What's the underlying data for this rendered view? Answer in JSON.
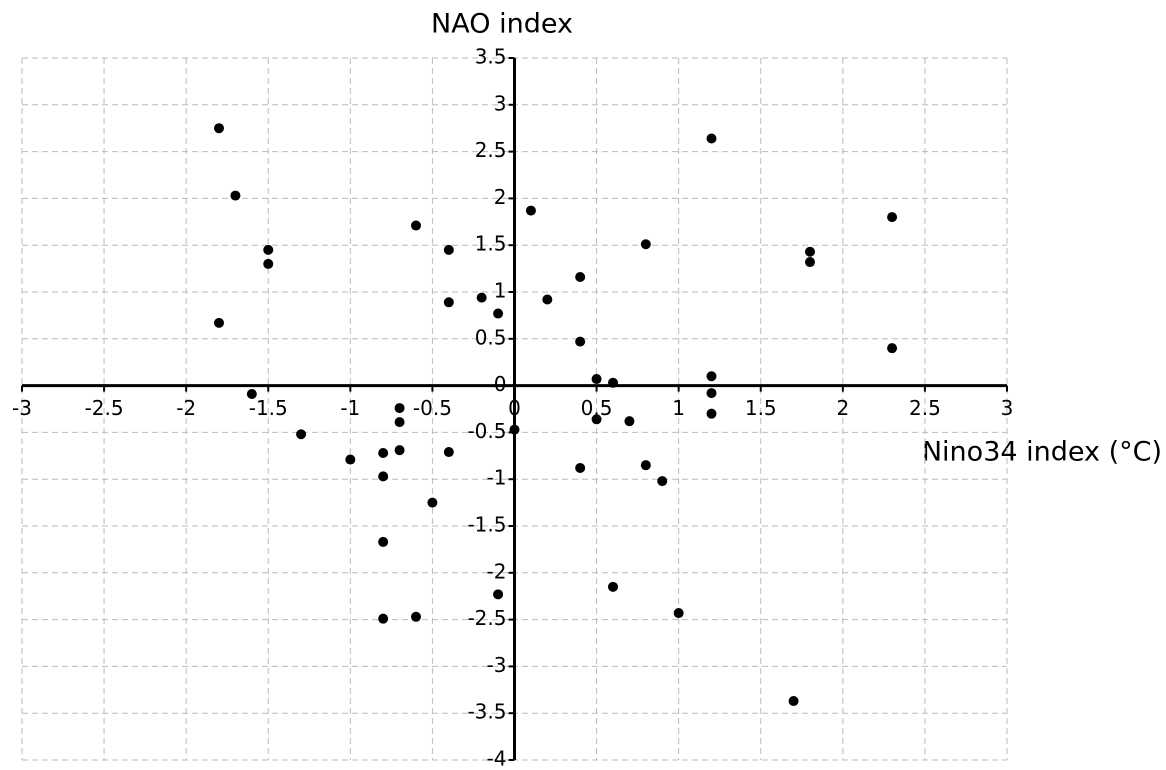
{
  "chart_data": {
    "type": "scatter",
    "x_label": "Nino34 index (°C)",
    "y_label": "NAO index",
    "color": "#000000",
    "grid": true,
    "xlim": [
      -3,
      3
    ],
    "ylim": [
      -4,
      3.5
    ],
    "xticks": [
      -3,
      -2.5,
      -2,
      -1.5,
      -1,
      -0.5,
      0,
      0.5,
      1,
      1.5,
      2,
      2.5,
      3
    ],
    "yticks": [
      -4,
      -3.5,
      -3,
      -2.5,
      -2,
      -1.5,
      -1,
      -0.5,
      0,
      0.5,
      1,
      1.5,
      2,
      2.5,
      3,
      3.5
    ],
    "x": [
      -1.8,
      -1.7,
      -1.5,
      -1.5,
      -1.8,
      -1.6,
      -1.3,
      -1.0,
      -0.8,
      -0.8,
      -0.7,
      -0.7,
      -0.7,
      -0.8,
      -0.8,
      -0.6,
      -0.5,
      -0.6,
      -0.4,
      -0.4,
      -0.4,
      -0.2,
      -0.1,
      -0.1,
      0,
      0.1,
      0.2,
      0.4,
      0.4,
      0.4,
      0.5,
      0.5,
      0.6,
      0.6,
      0.7,
      0.8,
      0.8,
      0.9,
      1.0,
      1.2,
      1.2,
      1.2,
      1.2,
      1.7,
      1.8,
      1.8,
      2.3,
      2.3
    ],
    "y": [
      2.75,
      2.03,
      1.45,
      1.3,
      0.67,
      -0.09,
      -0.52,
      -0.79,
      -0.72,
      -0.97,
      -0.24,
      -0.39,
      -0.69,
      -1.67,
      -2.49,
      -2.47,
      -1.25,
      1.71,
      1.45,
      0.89,
      -0.71,
      0.94,
      0.77,
      -2.23,
      -0.47,
      1.87,
      0.92,
      1.16,
      0.47,
      -0.88,
      0.07,
      -0.36,
      0.03,
      -2.15,
      -0.38,
      1.51,
      -0.85,
      -1.02,
      -2.43,
      2.64,
      0.1,
      -0.08,
      -0.3,
      -3.37,
      1.43,
      1.32,
      1.8,
      0.4
    ]
  }
}
